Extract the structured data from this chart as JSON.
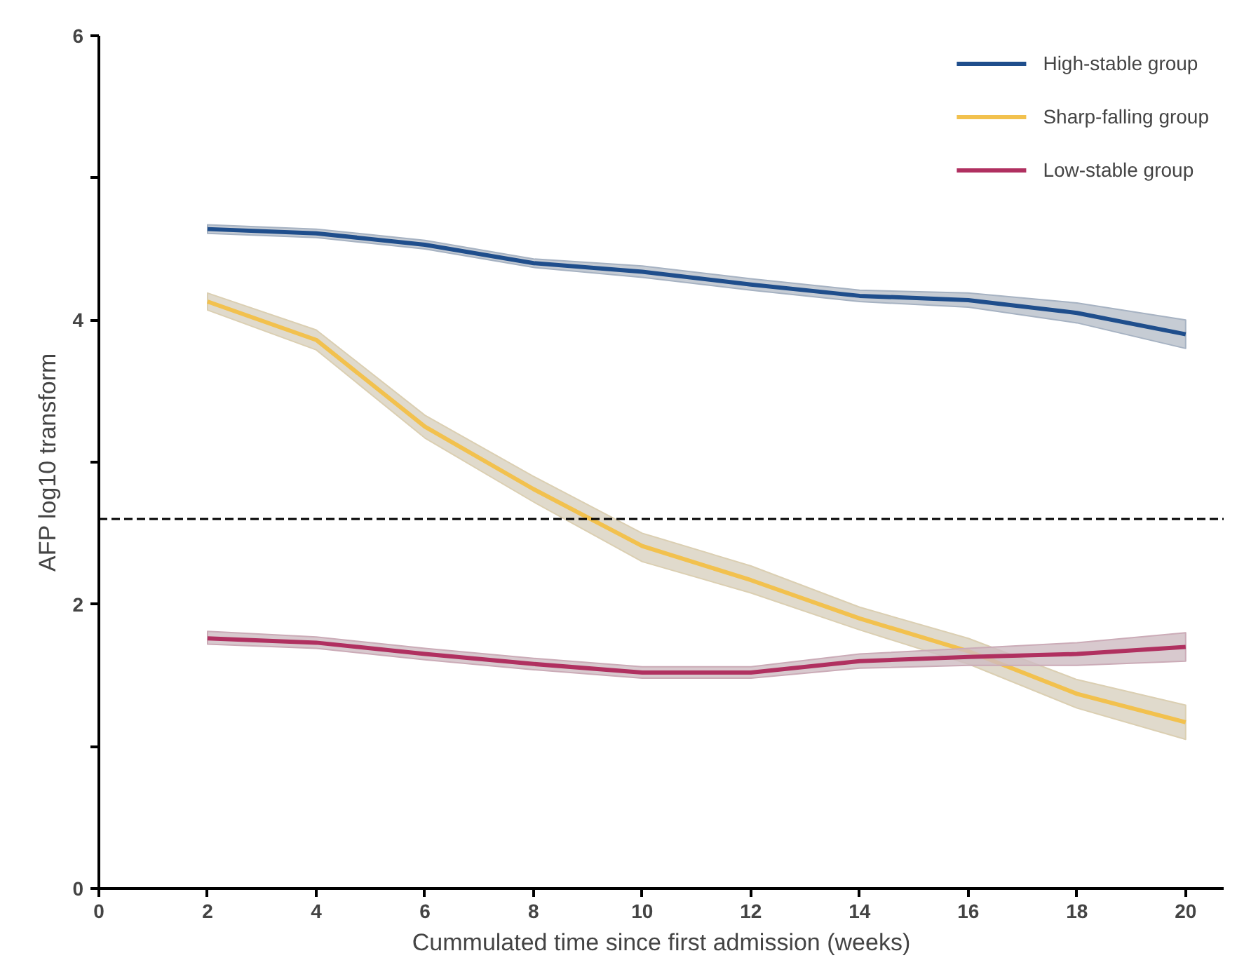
{
  "chart_data": {
    "type": "line",
    "xlabel": "Cummulated time since first admission (weeks)",
    "ylabel": "AFP log10 transform",
    "x": [
      2,
      4,
      6,
      8,
      10,
      12,
      14,
      16,
      18,
      20
    ],
    "xlim": [
      0,
      20.7
    ],
    "ylim": [
      0,
      6
    ],
    "xticks": [
      0,
      2,
      4,
      6,
      8,
      10,
      12,
      14,
      16,
      18,
      20
    ],
    "yticks": [
      0,
      {
        "value": 1,
        "label": null
      },
      2,
      {
        "value": 3,
        "label": null
      },
      4,
      {
        "value": 5,
        "label": null
      },
      6
    ],
    "grid": false,
    "legend": "top right",
    "marker": "none",
    "line_style": "solid",
    "ref_lines": [
      {
        "axis": "y",
        "value": 2.6,
        "line_style": "dashed",
        "color": "#000000"
      }
    ],
    "series": [
      {
        "name": "High-stable group",
        "color": "#1f4e8c",
        "values": [
          4.64,
          4.61,
          4.53,
          4.4,
          4.34,
          4.25,
          4.17,
          4.14,
          4.05,
          3.9
        ],
        "lower": [
          4.61,
          4.58,
          4.5,
          4.37,
          4.3,
          4.21,
          4.13,
          4.09,
          3.98,
          3.8
        ],
        "upper": [
          4.67,
          4.64,
          4.56,
          4.43,
          4.38,
          4.29,
          4.21,
          4.19,
          4.12,
          4.0
        ]
      },
      {
        "name": "Sharp-falling group",
        "color": "#f2c14e",
        "values": [
          4.13,
          3.86,
          3.25,
          2.81,
          2.41,
          2.17,
          1.9,
          1.67,
          1.37,
          1.17
        ],
        "lower": [
          4.07,
          3.79,
          3.17,
          2.72,
          2.3,
          2.08,
          1.82,
          1.58,
          1.27,
          1.05
        ],
        "upper": [
          4.19,
          3.93,
          3.33,
          2.9,
          2.5,
          2.27,
          1.98,
          1.76,
          1.47,
          1.29
        ]
      },
      {
        "name": "Low-stable group",
        "color": "#b03060",
        "values": [
          1.76,
          1.73,
          1.65,
          1.58,
          1.52,
          1.52,
          1.6,
          1.63,
          1.65,
          1.7
        ],
        "lower": [
          1.72,
          1.69,
          1.61,
          1.54,
          1.48,
          1.48,
          1.55,
          1.57,
          1.57,
          1.6
        ],
        "upper": [
          1.81,
          1.77,
          1.69,
          1.62,
          1.56,
          1.56,
          1.65,
          1.69,
          1.73,
          1.8
        ]
      }
    ]
  }
}
